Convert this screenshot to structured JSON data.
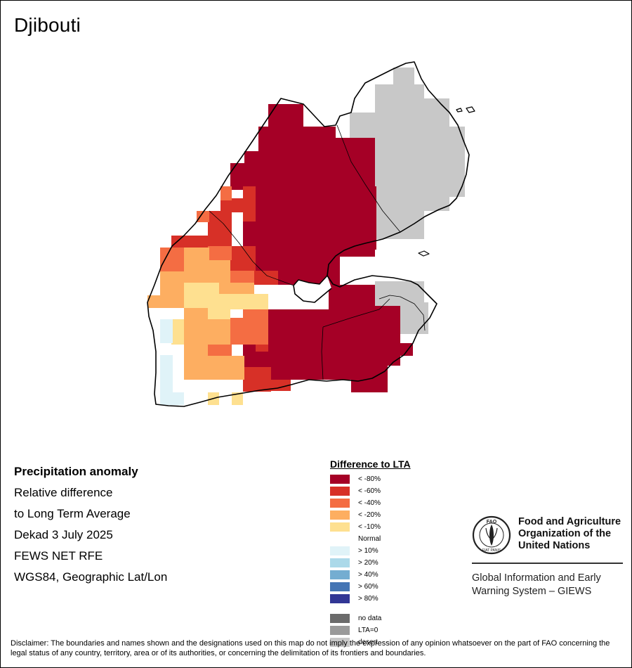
{
  "map": {
    "title": "Djibouti",
    "info_lines": [
      "Precipitation anomaly",
      "Relative difference",
      "to Long Term Average",
      "Dekad 3 July 2025",
      "FEWS NET RFE",
      "WGS84, Geographic Lat/Lon"
    ],
    "colors": {
      "m80": "#a50026",
      "m60": "#d73027",
      "m40": "#f46d43",
      "m20": "#fdae61",
      "m10": "#fee090",
      "normal": "#ffffff",
      "p10": "#e0f3f8",
      "p20": "#abd9e9",
      "p40": "#74add1",
      "p60": "#4575b4",
      "p80": "#313695",
      "nodata": "#6b6b6b",
      "lta0": "#9a9a9a",
      "desert": "#c8c8c8"
    }
  },
  "legend": {
    "title": "Difference to LTA",
    "items": [
      {
        "label": "< -80%",
        "color": "#a50026"
      },
      {
        "label": "< -60%",
        "color": "#d73027"
      },
      {
        "label": "< -40%",
        "color": "#f46d43"
      },
      {
        "label": "< -20%",
        "color": "#fdae61"
      },
      {
        "label": "< -10%",
        "color": "#fee090"
      },
      {
        "label": "Normal",
        "color": "#ffffff"
      },
      {
        "label": "> 10%",
        "color": "#e0f3f8"
      },
      {
        "label": "> 20%",
        "color": "#abd9e9"
      },
      {
        "label": "> 40%",
        "color": "#74add1"
      },
      {
        "label": "> 60%",
        "color": "#4575b4"
      },
      {
        "label": "> 80%",
        "color": "#313695"
      }
    ],
    "extra_items": [
      {
        "label": "no data",
        "color": "#6b6b6b"
      },
      {
        "label": "LTA=0",
        "color": "#9a9a9a"
      },
      {
        "label": "desert",
        "color": "#c8c8c8"
      }
    ]
  },
  "fao": {
    "name_lines": [
      "Food and Agriculture",
      "Organization of the",
      "United Nations"
    ],
    "logo_letters": "FAO",
    "logo_motto": "FIAT PANIS",
    "system_lines": [
      "Global Information and Early",
      "Warning System – GIEWS"
    ]
  },
  "disclaimer": "Disclaimer: The boundaries and names shown and the designations used on this map do not imply the expression of any opinion whatsoever on the part of FAO concerning the legal status of any country, territory, area or of its authorities, or concerning the delimitation of its frontiers and boundaries."
}
